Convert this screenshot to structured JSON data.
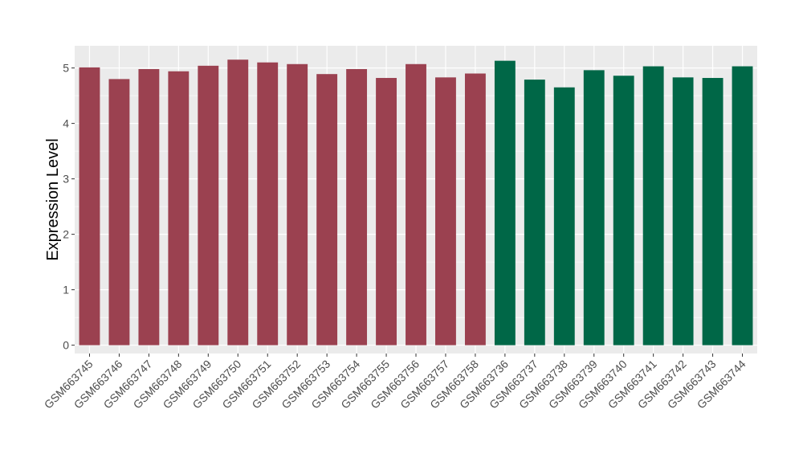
{
  "chart_data": {
    "type": "bar",
    "title": "",
    "xlabel": "",
    "ylabel": "Expression Level",
    "ylim": [
      -0.15,
      5.4
    ],
    "yticks": [
      0,
      1,
      2,
      3,
      4,
      5
    ],
    "grid": true,
    "background": "#EBEBEB",
    "categories": [
      "GSM663745",
      "GSM663746",
      "GSM663747",
      "GSM663748",
      "GSM663749",
      "GSM663750",
      "GSM663751",
      "GSM663752",
      "GSM663753",
      "GSM663754",
      "GSM663755",
      "GSM663756",
      "GSM663757",
      "GSM663758",
      "GSM663736",
      "GSM663737",
      "GSM663738",
      "GSM663739",
      "GSM663740",
      "GSM663741",
      "GSM663742",
      "GSM663743",
      "GSM663744"
    ],
    "values": [
      5.01,
      4.8,
      4.98,
      4.94,
      5.04,
      5.15,
      5.1,
      5.07,
      4.89,
      4.98,
      4.82,
      5.07,
      4.83,
      4.9,
      5.13,
      4.79,
      4.65,
      4.96,
      4.86,
      5.03,
      4.83,
      4.82,
      5.03
    ],
    "bar_colors": [
      "#9B4150",
      "#9B4150",
      "#9B4150",
      "#9B4150",
      "#9B4150",
      "#9B4150",
      "#9B4150",
      "#9B4150",
      "#9B4150",
      "#9B4150",
      "#9B4150",
      "#9B4150",
      "#9B4150",
      "#9B4150",
      "#006747",
      "#006747",
      "#006747",
      "#006747",
      "#006747",
      "#006747",
      "#006747",
      "#006747",
      "#006747"
    ]
  }
}
